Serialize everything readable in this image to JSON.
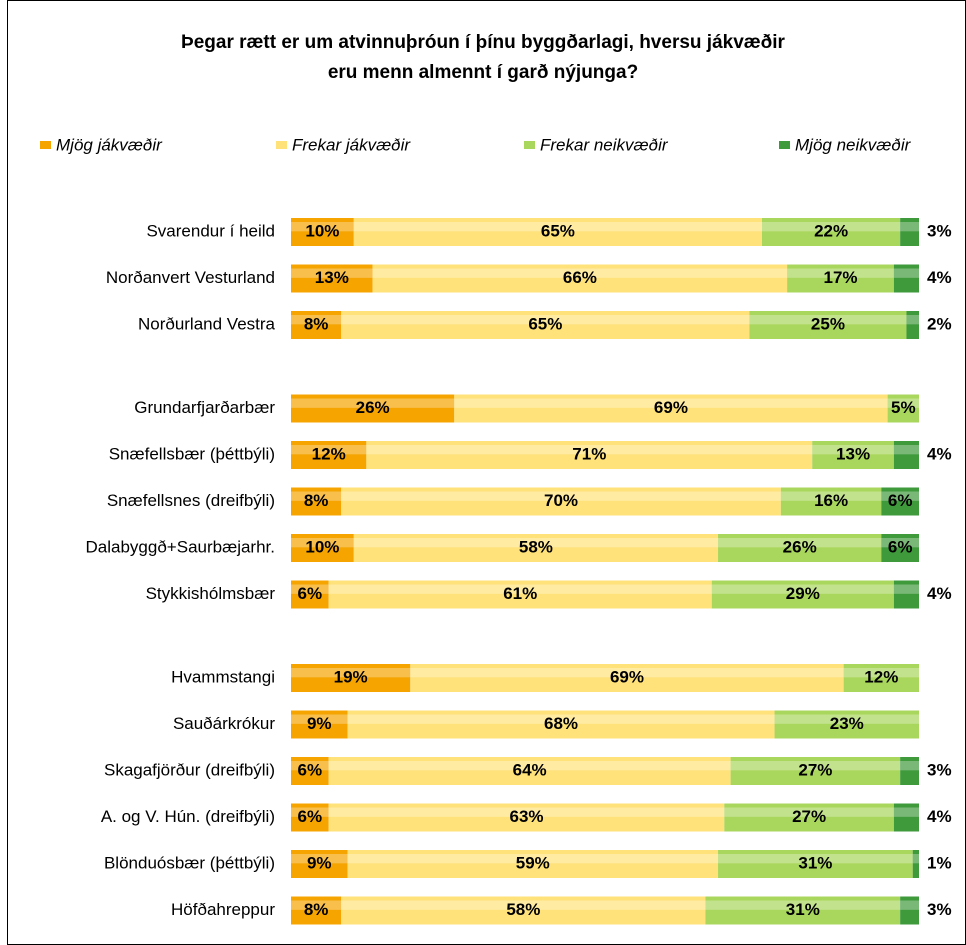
{
  "chart_data": {
    "type": "stacked-bar-horizontal",
    "title": "Þegar rætt er um atvinnuþróun í þínu byggðarlagi, hversu jákvæðir",
    "subtitle": "eru menn almennt í garð nýjunga?",
    "categories": [
      "Svarendur í heild",
      "Norðanvert Vesturland",
      "Norðurland Vestra",
      null,
      "Grundarfjarðarbær",
      "Snæfellsbær (þéttbýli)",
      "Snæfellsnes (dreifbýli)",
      "Dalabyggð+Saurbæjarhr.",
      "Stykkishólmsbær",
      null,
      "Hvammstangi",
      "Sauðárkrókur",
      "Skagafjörður (dreifbýli)",
      "A. og V. Hún. (dreifbýli)",
      "Blönduósbær (þéttbýli)",
      "Höfðahreppur"
    ],
    "series": [
      {
        "name": "Mjög jákvæðir",
        "color": "#f5a400",
        "values": [
          10,
          13,
          8,
          null,
          26,
          12,
          8,
          10,
          6,
          null,
          19,
          9,
          6,
          6,
          9,
          8
        ],
        "value_labels": [
          "10%",
          "13%",
          "8%",
          null,
          "26%",
          "12%",
          "8%",
          "10%",
          "6%",
          null,
          "19%",
          "9%",
          "6%",
          "6%",
          "9%",
          "8%"
        ]
      },
      {
        "name": "Frekar jákvæðir",
        "color": "#ffe27a",
        "values": [
          65,
          66,
          65,
          null,
          69,
          71,
          70,
          58,
          61,
          null,
          69,
          68,
          64,
          63,
          59,
          58
        ],
        "value_labels": [
          "65%",
          "66%",
          "65%",
          null,
          "69%",
          "71%",
          "70%",
          "58%",
          "61%",
          null,
          "69%",
          "68%",
          "64%",
          "63%",
          "59%",
          "58%"
        ]
      },
      {
        "name": "Frekar neikvæðir",
        "color": "#a9d65c",
        "values": [
          22,
          17,
          25,
          null,
          5,
          13,
          16,
          26,
          29,
          null,
          12,
          23,
          27,
          27,
          31,
          31
        ],
        "value_labels": [
          "22%",
          "17%",
          "25%",
          null,
          "5%",
          "13%",
          "16%",
          "26%",
          "29%",
          null,
          "12%",
          "23%",
          "27%",
          "27%",
          "31%",
          "31%"
        ]
      },
      {
        "name": "Mjög neikvæðir",
        "color": "#3f9a3c",
        "values": [
          3,
          4,
          2,
          null,
          null,
          4,
          6,
          6,
          4,
          null,
          null,
          null,
          3,
          4,
          1,
          3
        ],
        "value_labels": [
          "3%",
          "4%",
          "2%",
          null,
          null,
          "4%",
          "6%",
          "6%",
          "4%",
          null,
          null,
          null,
          "3%",
          "4%",
          "1%",
          "3%"
        ]
      }
    ],
    "legend": "top"
  }
}
